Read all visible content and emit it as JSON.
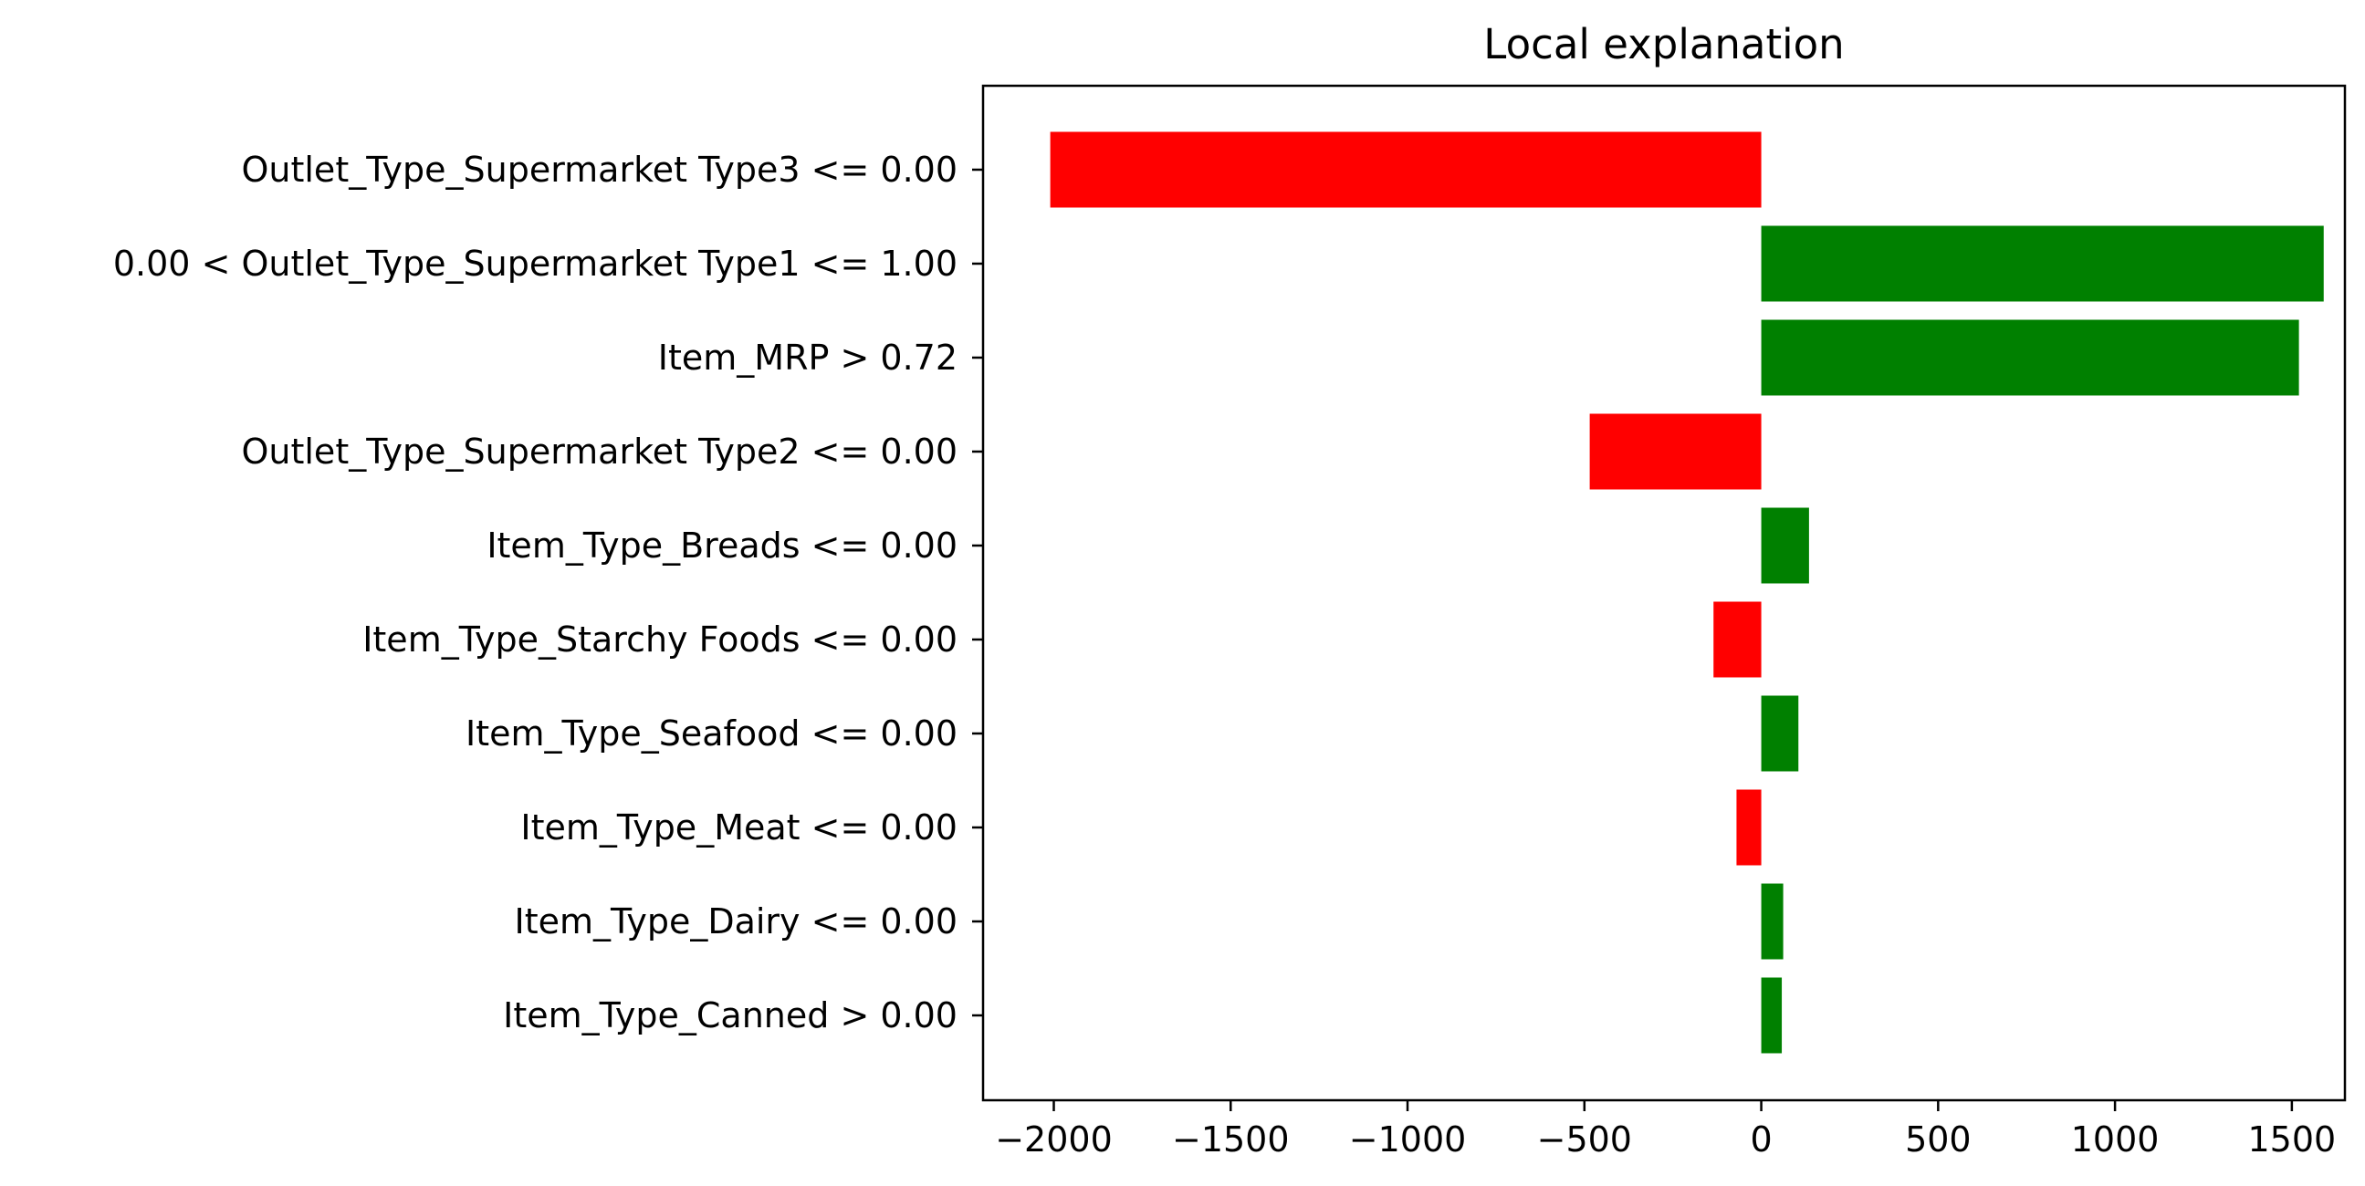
{
  "chart_data": {
    "type": "bar",
    "orientation": "horizontal",
    "title": "Local explanation",
    "xlabel": "",
    "ylabel": "",
    "xlim": [
      -2200,
      1650
    ],
    "xticks": [
      -2000,
      -1500,
      -1000,
      -500,
      0,
      500,
      1000,
      1500
    ],
    "xtick_labels": [
      "−2000",
      "−1500",
      "−1000",
      "−500",
      "0",
      "500",
      "1000",
      "1500"
    ],
    "categories": [
      "Outlet_Type_Supermarket Type3 <= 0.00",
      "0.00 < Outlet_Type_Supermarket Type1 <= 1.00",
      "Item_MRP > 0.72",
      "Outlet_Type_Supermarket Type2 <= 0.00",
      "Item_Type_Breads <= 0.00",
      "Item_Type_Starchy Foods <= 0.00",
      "Item_Type_Seafood <= 0.00",
      "Item_Type_Meat <= 0.00",
      "Item_Type_Dairy <= 0.00",
      "Item_Type_Canned > 0.00"
    ],
    "values": [
      -2010,
      1590,
      1520,
      -485,
      135,
      -135,
      105,
      -70,
      62,
      58
    ],
    "colors": {
      "positive": "#008000",
      "negative": "#ff0000"
    },
    "grid": false,
    "legend": "none"
  }
}
